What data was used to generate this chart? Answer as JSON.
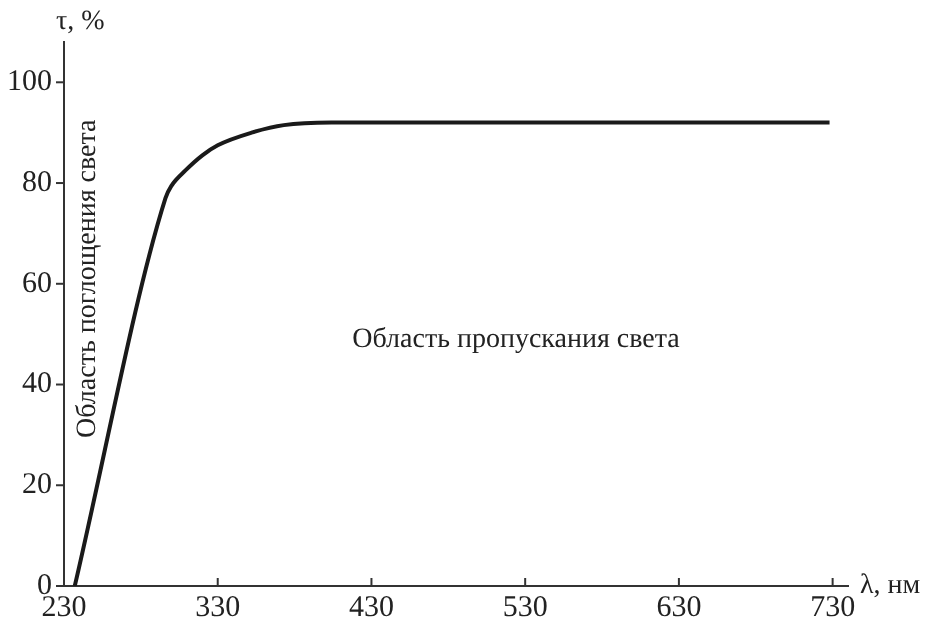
{
  "chart_data": {
    "type": "line",
    "xlabel": "λ, нм",
    "ylabel": "τ, %",
    "annotations": [
      "Область пропускания света",
      "Область поглощения света"
    ],
    "x": [
      237,
      296,
      300,
      309,
      320,
      330,
      352,
      373,
      404,
      728
    ],
    "series": [
      {
        "color": "#1a1a1a",
        "values": [
          0,
          77,
          79.5,
          82.5,
          85.5,
          87.5,
          90,
          91.5,
          92,
          92
        ]
      }
    ],
    "xlim": [
      230,
      740
    ],
    "xticks": [
      230,
      330,
      430,
      530,
      630,
      730
    ],
    "ylim": [
      0,
      108
    ],
    "yticks": [
      0,
      20,
      40,
      60,
      80,
      100
    ],
    "grid": false,
    "legend": false,
    "marker": "none",
    "line_style": "solid"
  }
}
